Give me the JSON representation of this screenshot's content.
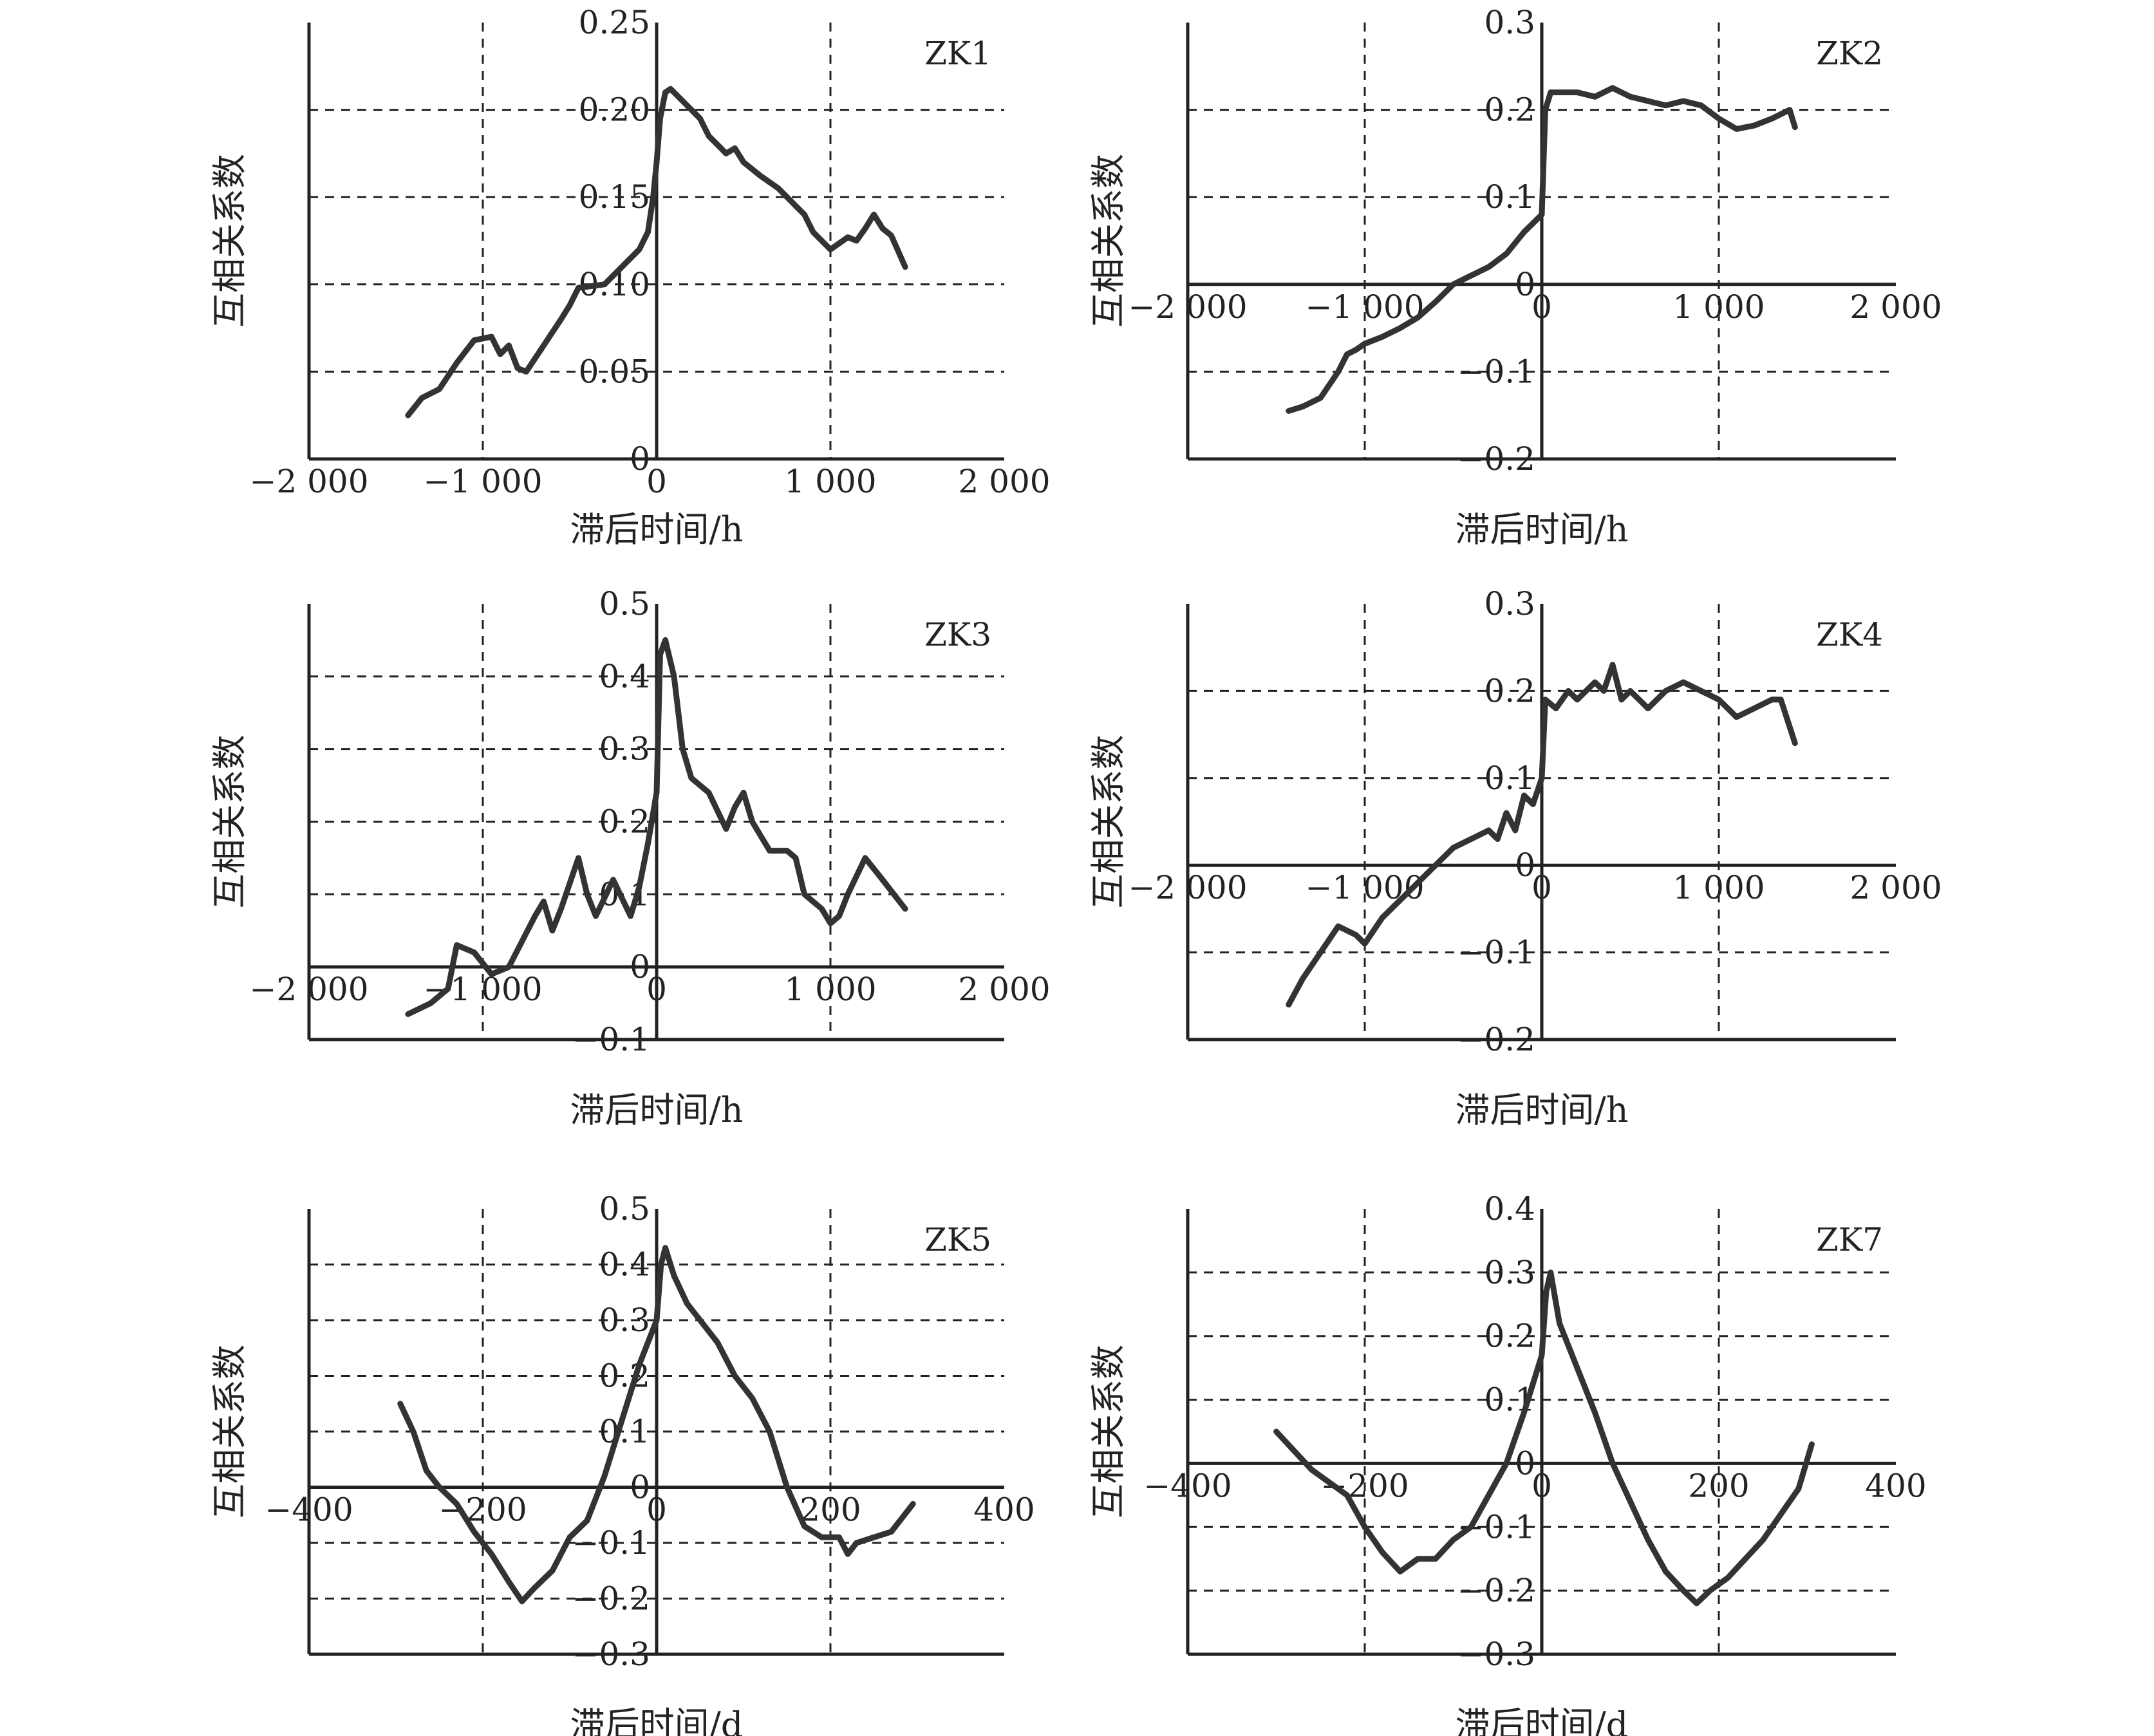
{
  "chart_data": [
    {
      "type": "line",
      "label": "ZK1",
      "xlabel": "滞后时间/h",
      "ylabel": "互相关系数",
      "xlim": [
        -2000,
        2000
      ],
      "ylim": [
        0,
        0.25
      ],
      "xticks": [
        -2000,
        -1000,
        0,
        1000,
        2000
      ],
      "xtick_labels": [
        "−2 000",
        "−1 000",
        "0",
        "1 000",
        "2 000"
      ],
      "yticks": [
        0,
        0.05,
        0.1,
        0.15,
        0.2,
        0.25
      ],
      "ytick_labels": [
        "0",
        "0.05",
        "0.10",
        "0.15",
        "0.20",
        "0.25"
      ],
      "grid": "dashed",
      "series": [
        {
          "x": [
            -1430,
            -1350,
            -1250,
            -1150,
            -1050,
            -950,
            -900,
            -850,
            -800,
            -750,
            -650,
            -550,
            -500,
            -450,
            -300,
            -200,
            -100,
            -50,
            -20,
            0,
            20,
            50,
            80,
            100,
            150,
            200,
            250,
            300,
            350,
            400,
            450,
            500,
            600,
            700,
            800,
            850,
            900,
            1000,
            1100,
            1150,
            1200,
            1250,
            1300,
            1350,
            1430
          ],
          "y": [
            0.025,
            0.035,
            0.04,
            0.055,
            0.068,
            0.07,
            0.06,
            0.065,
            0.052,
            0.05,
            0.065,
            0.08,
            0.088,
            0.098,
            0.1,
            0.11,
            0.12,
            0.13,
            0.15,
            0.17,
            0.195,
            0.21,
            0.212,
            0.21,
            0.205,
            0.2,
            0.195,
            0.185,
            0.18,
            0.175,
            0.178,
            0.17,
            0.162,
            0.155,
            0.145,
            0.14,
            0.13,
            0.12,
            0.127,
            0.125,
            0.132,
            0.14,
            0.132,
            0.128,
            0.11
          ]
        }
      ]
    },
    {
      "type": "line",
      "label": "ZK2",
      "xlabel": "滞后时间/h",
      "ylabel": "互相关系数",
      "xlim": [
        -2000,
        2000
      ],
      "ylim": [
        -0.2,
        0.3
      ],
      "xticks": [
        -2000,
        -1000,
        0,
        1000,
        2000
      ],
      "xtick_labels": [
        "−2 000",
        "−1 000",
        "0",
        "1 000",
        "2 000"
      ],
      "yticks": [
        -0.2,
        -0.1,
        0,
        0.1,
        0.2,
        0.3
      ],
      "ytick_labels": [
        "−0.2",
        "−0.1",
        "0",
        "0.1",
        "0.2",
        "0.3"
      ],
      "grid": "dashed",
      "series": [
        {
          "x": [
            -1430,
            -1350,
            -1250,
            -1150,
            -1100,
            -1050,
            -1000,
            -900,
            -800,
            -700,
            -600,
            -500,
            -400,
            -300,
            -200,
            -100,
            -50,
            0,
            20,
            50,
            100,
            200,
            300,
            400,
            500,
            600,
            700,
            800,
            900,
            1000,
            1100,
            1200,
            1300,
            1400,
            1430
          ],
          "y": [
            -0.145,
            -0.14,
            -0.13,
            -0.1,
            -0.08,
            -0.075,
            -0.068,
            -0.06,
            -0.05,
            -0.038,
            -0.02,
            0.0,
            0.01,
            0.02,
            0.035,
            0.06,
            0.07,
            0.08,
            0.2,
            0.22,
            0.22,
            0.22,
            0.215,
            0.225,
            0.215,
            0.21,
            0.205,
            0.21,
            0.205,
            0.19,
            0.178,
            0.182,
            0.19,
            0.2,
            0.18
          ]
        }
      ]
    },
    {
      "type": "line",
      "label": "ZK3",
      "xlabel": "滞后时间/h",
      "ylabel": "互相关系数",
      "xlim": [
        -2000,
        2000
      ],
      "ylim": [
        -0.1,
        0.5
      ],
      "xticks": [
        -2000,
        -1000,
        0,
        1000,
        2000
      ],
      "xtick_labels": [
        "−2 000",
        "−1 000",
        "0",
        "1 000",
        "2 000"
      ],
      "yticks": [
        -0.1,
        0,
        0.1,
        0.2,
        0.3,
        0.4,
        0.5
      ],
      "ytick_labels": [
        "−0.1",
        "0",
        "0.1",
        "0.2",
        "0.3",
        "0.4",
        "0.5"
      ],
      "grid": "dashed",
      "series": [
        {
          "x": [
            -1430,
            -1300,
            -1200,
            -1150,
            -1050,
            -950,
            -850,
            -700,
            -650,
            -600,
            -550,
            -450,
            -400,
            -350,
            -250,
            -150,
            -100,
            -50,
            0,
            20,
            50,
            100,
            150,
            200,
            300,
            400,
            450,
            500,
            550,
            650,
            750,
            800,
            850,
            950,
            1000,
            1050,
            1100,
            1200,
            1300,
            1430
          ],
          "y": [
            -0.065,
            -0.05,
            -0.03,
            0.03,
            0.02,
            -0.01,
            0.0,
            0.07,
            0.09,
            0.05,
            0.08,
            0.15,
            0.1,
            0.07,
            0.12,
            0.07,
            0.11,
            0.17,
            0.24,
            0.43,
            0.45,
            0.4,
            0.3,
            0.26,
            0.24,
            0.19,
            0.22,
            0.24,
            0.2,
            0.16,
            0.16,
            0.15,
            0.1,
            0.08,
            0.06,
            0.07,
            0.1,
            0.15,
            0.12,
            0.08
          ]
        }
      ]
    },
    {
      "type": "line",
      "label": "ZK4",
      "xlabel": "滞后时间/h",
      "ylabel": "互相关系数",
      "xlim": [
        -2000,
        2000
      ],
      "ylim": [
        -0.2,
        0.3
      ],
      "xticks": [
        -2000,
        -1000,
        0,
        1000,
        2000
      ],
      "xtick_labels": [
        "−2 000",
        "−1 000",
        "0",
        "1 000",
        "2 000"
      ],
      "yticks": [
        -0.2,
        -0.1,
        0,
        0.1,
        0.2,
        0.3
      ],
      "ytick_labels": [
        "−0.2",
        "−0.1",
        "0",
        "0.1",
        "0.2",
        "0.3"
      ],
      "grid": "dashed",
      "series": [
        {
          "x": [
            -1430,
            -1350,
            -1250,
            -1150,
            -1050,
            -1000,
            -900,
            -800,
            -700,
            -600,
            -500,
            -400,
            -300,
            -250,
            -200,
            -150,
            -100,
            -50,
            0,
            20,
            80,
            150,
            200,
            300,
            350,
            400,
            450,
            500,
            600,
            700,
            800,
            900,
            1000,
            1100,
            1200,
            1300,
            1350,
            1430
          ],
          "y": [
            -0.16,
            -0.13,
            -0.1,
            -0.07,
            -0.08,
            -0.09,
            -0.06,
            -0.04,
            -0.02,
            0.0,
            0.02,
            0.03,
            0.04,
            0.03,
            0.06,
            0.04,
            0.08,
            0.07,
            0.1,
            0.19,
            0.18,
            0.2,
            0.19,
            0.21,
            0.2,
            0.23,
            0.19,
            0.2,
            0.18,
            0.2,
            0.21,
            0.2,
            0.19,
            0.17,
            0.18,
            0.19,
            0.19,
            0.14
          ]
        }
      ]
    },
    {
      "type": "line",
      "label": "ZK5",
      "xlabel": "滞后时间/d",
      "ylabel": "互相关系数",
      "xlim": [
        -400,
        400
      ],
      "ylim": [
        -0.3,
        0.5
      ],
      "xticks": [
        -400,
        -200,
        0,
        200,
        400
      ],
      "xtick_labels": [
        "−400",
        "−200",
        "0",
        "200",
        "400"
      ],
      "yticks": [
        -0.3,
        -0.2,
        -0.1,
        0,
        0.1,
        0.2,
        0.3,
        0.4,
        0.5
      ],
      "ytick_labels": [
        "−0.3",
        "−0.2",
        "−0.1",
        "0",
        "0.1",
        "0.2",
        "0.3",
        "0.4",
        "0.5"
      ],
      "grid": "dashed",
      "series": [
        {
          "x": [
            -295,
            -280,
            -265,
            -250,
            -230,
            -210,
            -190,
            -170,
            -155,
            -140,
            -120,
            -100,
            -80,
            -60,
            -40,
            -20,
            0,
            5,
            10,
            20,
            35,
            50,
            70,
            90,
            110,
            130,
            140,
            150,
            170,
            190,
            210,
            220,
            230,
            250,
            270,
            295
          ],
          "y": [
            0.15,
            0.1,
            0.03,
            0.0,
            -0.03,
            -0.08,
            -0.12,
            -0.17,
            -0.205,
            -0.18,
            -0.15,
            -0.09,
            -0.06,
            0.02,
            0.12,
            0.22,
            0.3,
            0.4,
            0.43,
            0.38,
            0.33,
            0.3,
            0.26,
            0.2,
            0.16,
            0.1,
            0.05,
            0.0,
            -0.07,
            -0.09,
            -0.09,
            -0.12,
            -0.1,
            -0.09,
            -0.08,
            -0.03
          ]
        }
      ]
    },
    {
      "type": "line",
      "label": "ZK7",
      "xlabel": "滞后时间/d",
      "ylabel": "互相关系数",
      "xlim": [
        -400,
        400
      ],
      "ylim": [
        -0.3,
        0.4
      ],
      "xticks": [
        -400,
        -200,
        0,
        200,
        400
      ],
      "xtick_labels": [
        "−400",
        "−200",
        "0",
        "200",
        "400"
      ],
      "yticks": [
        -0.3,
        -0.2,
        -0.1,
        0,
        0.1,
        0.2,
        0.3,
        0.4
      ],
      "ytick_labels": [
        "−0.3",
        "−0.2",
        "−0.1",
        "0",
        "0.1",
        "0.2",
        "0.3",
        "0.4"
      ],
      "grid": "dashed",
      "series": [
        {
          "x": [
            -300,
            -280,
            -260,
            -240,
            -220,
            -200,
            -180,
            -160,
            -140,
            -120,
            -100,
            -80,
            -60,
            -40,
            -20,
            0,
            5,
            10,
            20,
            40,
            60,
            80,
            100,
            120,
            140,
            160,
            175,
            190,
            210,
            230,
            250,
            270,
            290,
            305
          ],
          "y": [
            0.05,
            0.02,
            -0.01,
            -0.03,
            -0.05,
            -0.1,
            -0.14,
            -0.17,
            -0.15,
            -0.15,
            -0.12,
            -0.1,
            -0.05,
            0.0,
            0.08,
            0.17,
            0.27,
            0.3,
            0.22,
            0.15,
            0.08,
            0.0,
            -0.06,
            -0.12,
            -0.17,
            -0.2,
            -0.22,
            -0.2,
            -0.18,
            -0.15,
            -0.12,
            -0.08,
            -0.04,
            0.03
          ]
        }
      ]
    }
  ]
}
